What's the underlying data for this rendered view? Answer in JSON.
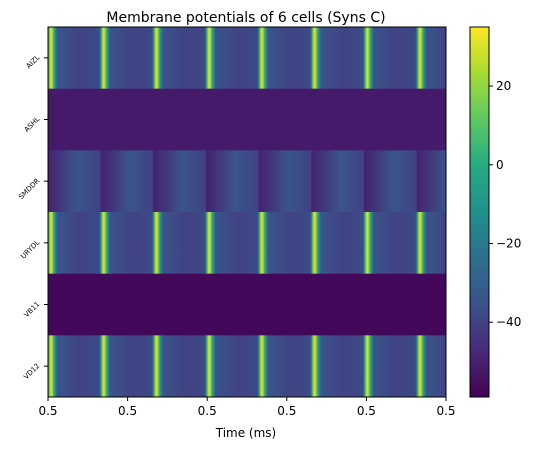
{
  "chart_data": {
    "type": "heatmap",
    "title": "Membrane potentials of 6 cells (Syns C)",
    "xlabel": "Time (ms)",
    "ylabel": "",
    "x_ticks": [
      "0.5",
      "0.5",
      "0.5",
      "0.5",
      "0.5",
      "0.5"
    ],
    "rows": [
      "AIZL",
      "ASHL",
      "SMDDR",
      "URYDL",
      "VB11",
      "VD12"
    ],
    "colormap": "viridis",
    "colorbar": {
      "vmin": -59,
      "vmax": 35,
      "ticks": [
        20,
        0,
        -20,
        -40
      ],
      "tick_labels": [
        "20",
        "0",
        "−20",
        "−40"
      ]
    },
    "n_cycles": 7.55,
    "series": [
      {
        "name": "AIZL",
        "pattern": "spike",
        "baseline": -40,
        "peak": 32,
        "rise_start": 0.0,
        "peak_at": 0.06,
        "fall_end": 0.18
      },
      {
        "name": "ASHL",
        "pattern": "flat",
        "value": -52
      },
      {
        "name": "SMDDR",
        "pattern": "ramp",
        "min": -50,
        "max": -34,
        "bright_at": 0.55,
        "drop_at": 0.99
      },
      {
        "name": "URYDL",
        "pattern": "spike",
        "baseline": -40,
        "peak": 32,
        "rise_start": 0.0,
        "peak_at": 0.06,
        "fall_end": 0.18
      },
      {
        "name": "VB11",
        "pattern": "flat",
        "value": -57
      },
      {
        "name": "VD12",
        "pattern": "spike",
        "baseline": -40,
        "peak": 32,
        "rise_start": 0.0,
        "peak_at": 0.06,
        "fall_end": 0.18
      }
    ]
  }
}
